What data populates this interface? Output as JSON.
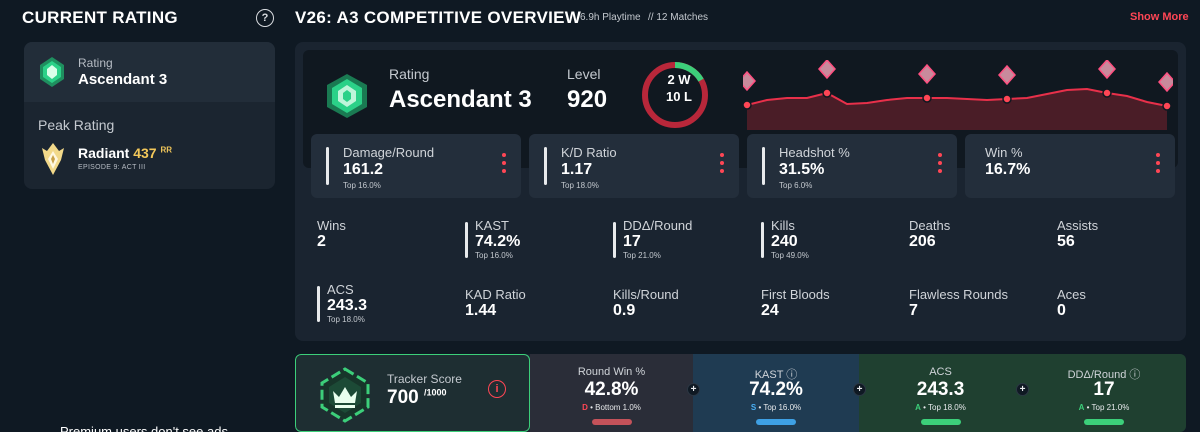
{
  "sidebar": {
    "title": "CURRENT RATING",
    "help_icon": "?",
    "current": {
      "label": "Rating",
      "value": "Ascendant 3",
      "icon": "ascendant-rank-icon"
    },
    "peak": {
      "label": "Peak Rating",
      "rank": "Radiant",
      "rr": "437",
      "rr_unit": "RR",
      "episode": "EPISODE 9: ACT III",
      "icon": "radiant-rank-icon"
    },
    "ad_text": "Premium users don't see ads"
  },
  "header": {
    "title": "V26: A3 COMPETITIVE OVERVIEW",
    "playtime": "6.9h Playtime",
    "matches": "// 12 Matches",
    "show_more": "Show More"
  },
  "overview": {
    "rating_label": "Rating",
    "rating_value": "Ascendant 3",
    "level_label": "Level",
    "level_value": "920",
    "wins": "2 W",
    "losses": "10 L",
    "win_fraction": 0.167,
    "trend_points": [
      45,
      40,
      38,
      38,
      33,
      44,
      43,
      40,
      38,
      38,
      38,
      39,
      40,
      39,
      38,
      34,
      30,
      29,
      33,
      36,
      42,
      46
    ]
  },
  "stat_cards": [
    {
      "label": "Damage/Round",
      "value": "161.2",
      "top": "Top 16.0%",
      "bar": true
    },
    {
      "label": "K/D Ratio",
      "value": "1.17",
      "top": "Top 18.0%",
      "bar": true
    },
    {
      "label": "Headshot %",
      "value": "31.5%",
      "top": "Top 6.0%",
      "bar": true
    },
    {
      "label": "Win %",
      "value": "16.7%",
      "top": "",
      "bar": false
    }
  ],
  "grid_row1": [
    {
      "label": "Wins",
      "value": "2",
      "top": ""
    },
    {
      "label": "KAST",
      "value": "74.2%",
      "top": "Top 16.0%"
    },
    {
      "label": "DDΔ/Round",
      "value": "17",
      "top": "Top 21.0%"
    },
    {
      "label": "Kills",
      "value": "240",
      "top": "Top 49.0%"
    },
    {
      "label": "Deaths",
      "value": "206",
      "top": ""
    },
    {
      "label": "Assists",
      "value": "56",
      "top": ""
    }
  ],
  "grid_row2": [
    {
      "label": "ACS",
      "value": "243.3",
      "top": "Top 18.0%"
    },
    {
      "label": "KAD Ratio",
      "value": "1.44",
      "top": ""
    },
    {
      "label": "Kills/Round",
      "value": "0.9",
      "top": ""
    },
    {
      "label": "First Bloods",
      "value": "24",
      "top": ""
    },
    {
      "label": "Flawless Rounds",
      "value": "7",
      "top": ""
    },
    {
      "label": "Aces",
      "value": "0",
      "top": ""
    }
  ],
  "tracker": {
    "label": "Tracker Score",
    "value": "700",
    "max": "/1000",
    "cells": [
      {
        "label": "Round Win %",
        "value": "42.8%",
        "grade": "D",
        "sub": " • Bottom 1.0%",
        "color": "#ff4655",
        "chip": "#c4525a",
        "bg": "#2a2d38"
      },
      {
        "label": "KAST ⓘ",
        "value": "74.2%",
        "grade": "S",
        "sub": " • Top 16.0%",
        "color": "#4ab0f5",
        "chip": "#3ea0e4",
        "bg": "#1f3b52"
      },
      {
        "label": "ACS",
        "value": "243.3",
        "grade": "A",
        "sub": " • Top 18.0%",
        "color": "#3ccf7a",
        "chip": "#3ccf7a",
        "bg": "#1f4030"
      },
      {
        "label": "DDΔ/Round ⓘ",
        "value": "17",
        "grade": "A",
        "sub": " • Top 21.0%",
        "color": "#3ccf7a",
        "chip": "#3ccf7a",
        "bg": "#1f4030"
      }
    ]
  }
}
